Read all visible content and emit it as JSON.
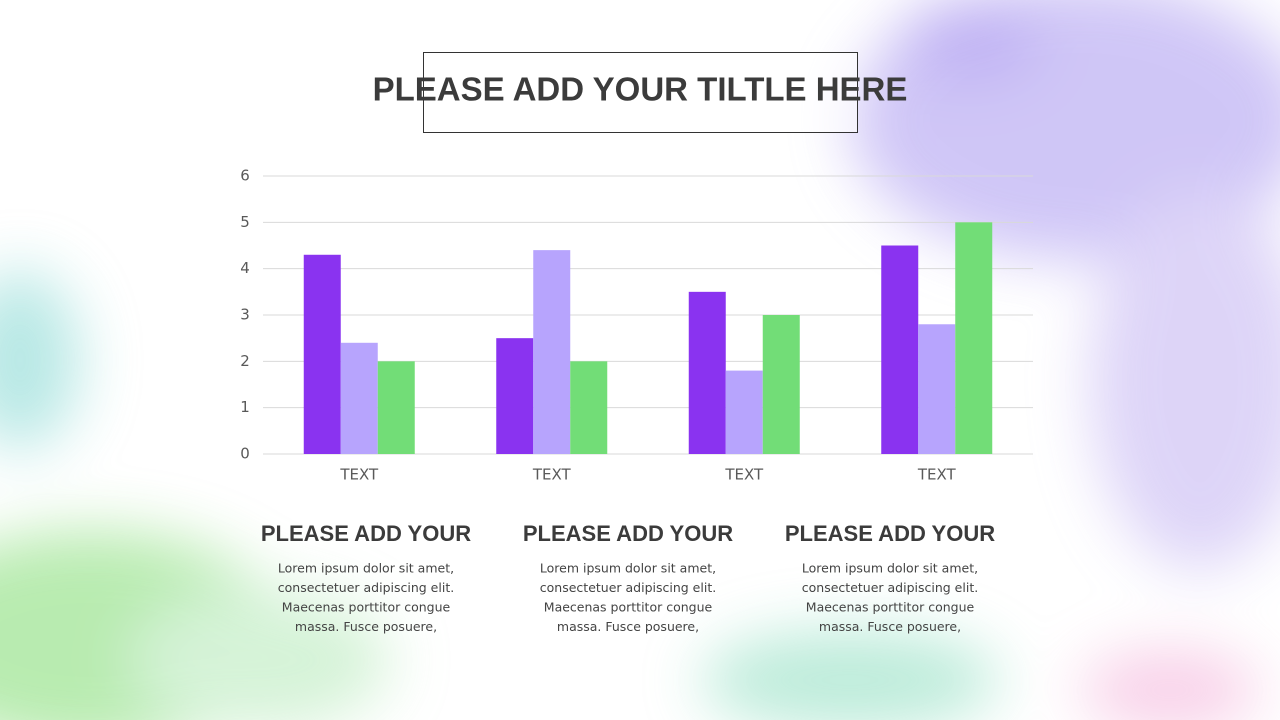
{
  "chart_data": {
    "type": "bar",
    "title": "PLEASE ADD YOUR TILTLE HERE",
    "categories": [
      "TEXT",
      "TEXT",
      "TEXT",
      "TEXT"
    ],
    "series": [
      {
        "color": "#8a33f0",
        "values": [
          4.3,
          2.5,
          3.5,
          4.5
        ]
      },
      {
        "color": "#b7a4fd",
        "values": [
          2.4,
          4.4,
          1.8,
          2.8
        ]
      },
      {
        "color": "#72dd77",
        "values": [
          2.0,
          2.0,
          3.0,
          5.0
        ]
      }
    ],
    "ylim": [
      0,
      6
    ],
    "yticks": [
      0,
      1,
      2,
      3,
      4,
      5,
      6
    ],
    "grid": true
  },
  "text_blocks": [
    {
      "heading": "PLEASE ADD YOUR",
      "lines": [
        "Lorem ipsum dolor sit amet,",
        "consectetuer adipiscing elit.",
        "Maecenas porttitor congue",
        "massa. Fusce posuere,"
      ]
    },
    {
      "heading": "PLEASE ADD YOUR",
      "lines": [
        "Lorem ipsum dolor sit amet,",
        "consectetuer adipiscing elit.",
        "Maecenas porttitor congue",
        "massa. Fusce posuere,"
      ]
    },
    {
      "heading": "PLEASE ADD YOUR",
      "lines": [
        "Lorem ipsum dolor sit amet,",
        "consectetuer adipiscing elit.",
        "Maecenas porttitor congue",
        "massa. Fusce posuere,"
      ]
    }
  ]
}
